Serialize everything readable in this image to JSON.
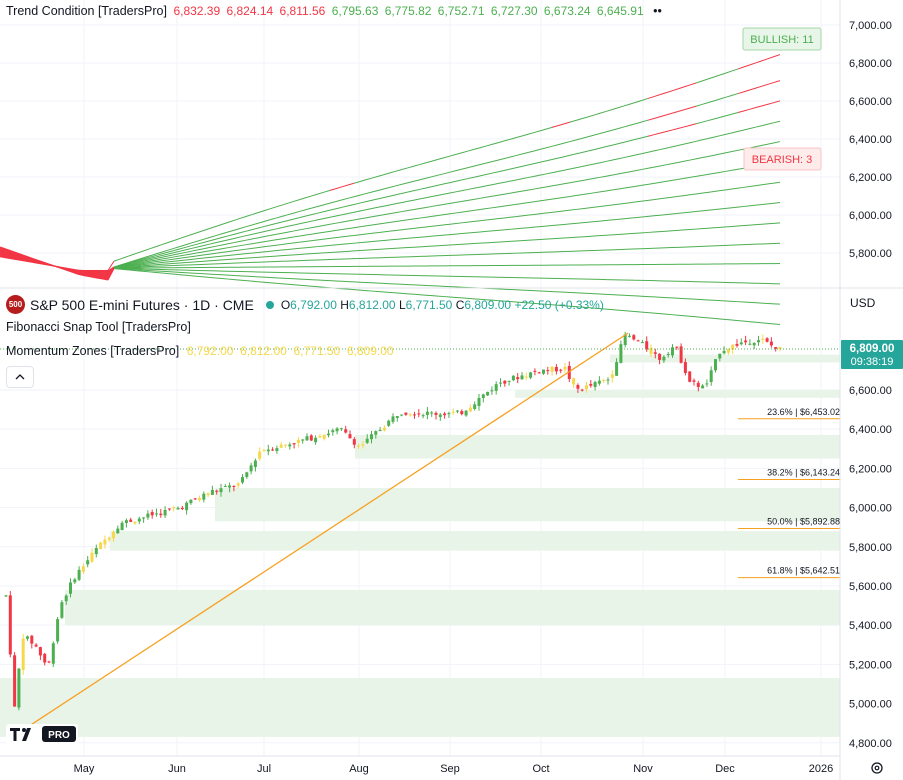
{
  "trend_pane": {
    "title": "Trend Condition [TradersPro]",
    "values": [
      {
        "text": "6,832.39",
        "color": "#f23645"
      },
      {
        "text": "6,824.14",
        "color": "#f23645"
      },
      {
        "text": "6,811.56",
        "color": "#f23645"
      },
      {
        "text": "6,795.63",
        "color": "#4caf50"
      },
      {
        "text": "6,775.82",
        "color": "#4caf50"
      },
      {
        "text": "6,752.71",
        "color": "#4caf50"
      },
      {
        "text": "6,727.30",
        "color": "#4caf50"
      },
      {
        "text": "6,673.24",
        "color": "#4caf50"
      },
      {
        "text": "6,645.91",
        "color": "#4caf50"
      }
    ],
    "more": "••",
    "bullish_label": "BULLISH: 11",
    "bearish_label": "BEARISH: 3",
    "y_ticks": [
      "7,000.00",
      "6,800.00",
      "6,600.00",
      "6,400.00",
      "6,200.00",
      "6,000.00",
      "5,800.00"
    ]
  },
  "price_pane": {
    "badge": "500",
    "symbol": "S&P 500 E-mini Futures · 1D · CME",
    "ohlc": {
      "o_label": "O",
      "o": "6,792.00",
      "h_label": "H",
      "h": "6,812.00",
      "l_label": "L",
      "l": "6,771.50",
      "c_label": "C",
      "c": "6,809.00",
      "change": "+22.50 (+0.33%)"
    },
    "currency": "USD",
    "indicator1": "Fibonacci Snap Tool [TradersPro]",
    "indicator2": "Momentum Zones [TradersPro]",
    "indicator2_values": "6,792.00  6,812.00  6,771.50  6,809.00",
    "collapse_icon": "chevron-up-icon",
    "last_price": "6,809.00",
    "countdown": "09:38:19",
    "y_ticks": [
      "6,600.00",
      "6,400.00",
      "6,200.00",
      "6,000.00",
      "5,800.00",
      "5,600.00",
      "5,400.00",
      "5,200.00",
      "5,000.00",
      "4,800.00"
    ],
    "fib_levels": [
      {
        "label": "23.6% | $6,453.02",
        "value": 6453.02
      },
      {
        "label": "38.2% | $6,143.24",
        "value": 6143.24
      },
      {
        "label": "50.0% | $5,892.88",
        "value": 5892.88
      },
      {
        "label": "61.8% | $5,642.51",
        "value": 5642.51
      }
    ]
  },
  "time_axis": [
    "May",
    "Jun",
    "Jul",
    "Aug",
    "Sep",
    "Oct",
    "Nov",
    "Dec",
    "2026"
  ],
  "logo": "PRO",
  "colors": {
    "up": "#4caf50",
    "down": "#f23645",
    "neutral": "#f5d84b",
    "fib": "#f7a021",
    "zone": "#e8f4e8",
    "accent": "#2962ff"
  }
}
